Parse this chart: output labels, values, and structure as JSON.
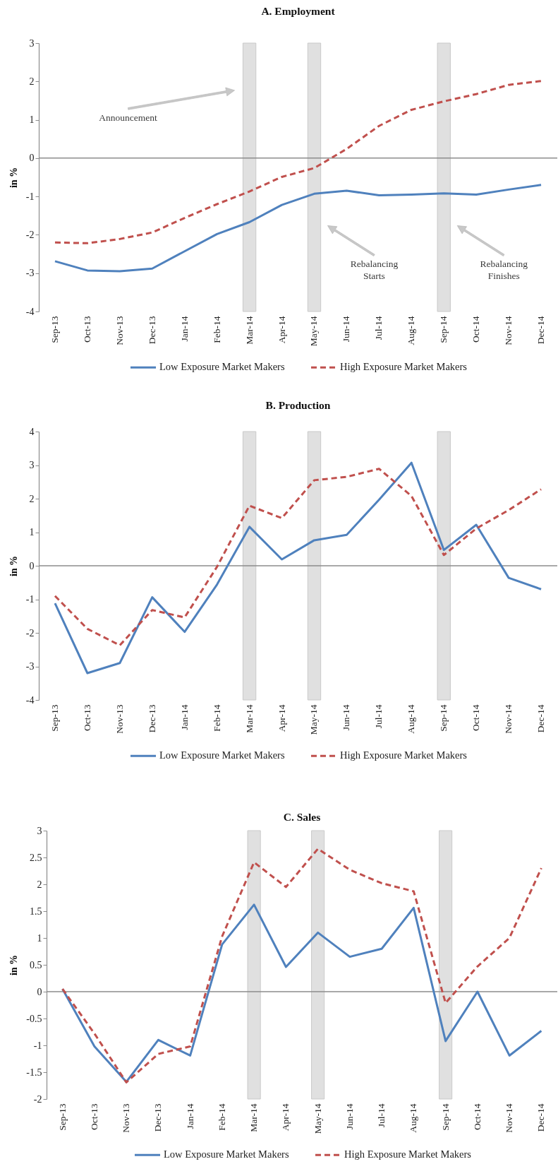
{
  "chart_data": [
    {
      "type": "line",
      "title": "A. Employment",
      "ylabel": "in %",
      "categories": [
        "Sep-13",
        "Oct-13",
        "Nov-13",
        "Dec-13",
        "Jan-14",
        "Feb-14",
        "Mar-14",
        "Apr-14",
        "May-14",
        "Jun-14",
        "Jul-14",
        "Aug-14",
        "Sep-14",
        "Oct-14",
        "Nov-14",
        "Dec-14"
      ],
      "series": [
        {
          "name": "Low Exposure Market Makers",
          "color": "#4f81bd",
          "line_style": "solid",
          "values": [
            -2.69,
            -2.93,
            -2.95,
            -2.88,
            -2.43,
            -1.98,
            -1.67,
            -1.22,
            -0.93,
            -0.85,
            -0.97,
            -0.95,
            -0.92,
            -0.95,
            -0.82,
            -0.7
          ]
        },
        {
          "name": "High Exposure Market Makers",
          "color": "#c0504d",
          "line_style": "dashed",
          "values": [
            -2.2,
            -2.22,
            -2.11,
            -1.94,
            -1.56,
            -1.2,
            -0.87,
            -0.49,
            -0.26,
            0.24,
            0.84,
            1.26,
            1.48,
            1.67,
            1.91,
            2.01
          ]
        }
      ],
      "ylim": [
        -4,
        3
      ],
      "yticks": [
        -4,
        -3,
        -2,
        -1,
        0,
        1,
        2,
        3
      ],
      "legend": "bottom",
      "bands": [
        {
          "axis": "x",
          "from": "Mar-14",
          "to": "Mar-14",
          "color": "#e0e0e0"
        },
        {
          "axis": "x",
          "from": "May-14",
          "to": "May-14",
          "color": "#e0e0e0"
        },
        {
          "axis": "x",
          "from": "Sep-14",
          "to": "Sep-14",
          "color": "#e0e0e0"
        }
      ],
      "ref_lines": [
        {
          "axis": "y",
          "value": 0,
          "color": "#8c8c8c"
        }
      ],
      "annotations": [
        "Announcement",
        "Rebalancing Starts",
        "Rebalancing Finishes"
      ]
    },
    {
      "type": "line",
      "title": "B. Production",
      "ylabel": "in %",
      "categories": [
        "Sep-13",
        "Oct-13",
        "Nov-13",
        "Dec-13",
        "Jan-14",
        "Feb-14",
        "Mar-14",
        "Apr-14",
        "May-14",
        "Jun-14",
        "Jul-14",
        "Aug-14",
        "Sep-14",
        "Oct-14",
        "Nov-14",
        "Dec-14"
      ],
      "series": [
        {
          "name": "Low Exposure Market Makers",
          "color": "#4f81bd",
          "line_style": "solid",
          "values": [
            -1.12,
            -3.2,
            -2.9,
            -0.94,
            -1.97,
            -0.56,
            1.16,
            0.19,
            0.76,
            0.92,
            1.97,
            3.07,
            0.47,
            1.22,
            -0.36,
            -0.7
          ]
        },
        {
          "name": "High Exposure Market Makers",
          "color": "#c0504d",
          "line_style": "dashed",
          "values": [
            -0.9,
            -1.88,
            -2.37,
            -1.32,
            -1.54,
            -0.03,
            1.79,
            1.42,
            2.55,
            2.65,
            2.89,
            2.08,
            0.32,
            1.11,
            1.66,
            2.28
          ]
        }
      ],
      "ylim": [
        -4,
        4
      ],
      "yticks": [
        -4,
        -3,
        -2,
        -1,
        0,
        1,
        2,
        3,
        4
      ],
      "legend": "bottom",
      "bands": [
        {
          "axis": "x",
          "from": "Mar-14",
          "to": "Mar-14",
          "color": "#e0e0e0"
        },
        {
          "axis": "x",
          "from": "May-14",
          "to": "May-14",
          "color": "#e0e0e0"
        },
        {
          "axis": "x",
          "from": "Sep-14",
          "to": "Sep-14",
          "color": "#e0e0e0"
        }
      ],
      "ref_lines": [
        {
          "axis": "y",
          "value": 0,
          "color": "#8c8c8c"
        }
      ]
    },
    {
      "type": "line",
      "title": "C. Sales",
      "ylabel": "in %",
      "categories": [
        "Sep-13",
        "Oct-13",
        "Nov-13",
        "Dec-13",
        "Jan-14",
        "Feb-14",
        "Mar-14",
        "Apr-14",
        "May-14",
        "Jun-14",
        "Jul-14",
        "Aug-14",
        "Sep-14",
        "Oct-14",
        "Nov-14",
        "Dec-14"
      ],
      "series": [
        {
          "name": "Low Exposure Market Makers",
          "color": "#4f81bd",
          "line_style": "solid",
          "values": [
            0.05,
            -1.02,
            -1.68,
            -0.9,
            -1.19,
            0.88,
            1.62,
            0.46,
            1.1,
            0.65,
            0.8,
            1.56,
            -0.92,
            0.0,
            -1.19,
            -0.73
          ]
        },
        {
          "name": "High Exposure Market Makers",
          "color": "#c0504d",
          "line_style": "dashed",
          "values": [
            0.05,
            -0.78,
            -1.69,
            -1.16,
            -1.02,
            1.03,
            2.41,
            1.95,
            2.66,
            2.27,
            2.02,
            1.87,
            -0.21,
            0.47,
            1.0,
            2.3
          ]
        }
      ],
      "ylim": [
        -2,
        3
      ],
      "yticks": [
        -2,
        -1.5,
        -1,
        -0.5,
        0,
        0.5,
        1,
        1.5,
        2,
        2.5,
        3
      ],
      "legend": "bottom",
      "bands": [
        {
          "axis": "x",
          "from": "Mar-14",
          "to": "Mar-14",
          "color": "#e0e0e0"
        },
        {
          "axis": "x",
          "from": "May-14",
          "to": "May-14",
          "color": "#e0e0e0"
        },
        {
          "axis": "x",
          "from": "Sep-14",
          "to": "Sep-14",
          "color": "#e0e0e0"
        }
      ],
      "ref_lines": [
        {
          "axis": "y",
          "value": 0,
          "color": "#8c8c8c"
        }
      ]
    }
  ]
}
